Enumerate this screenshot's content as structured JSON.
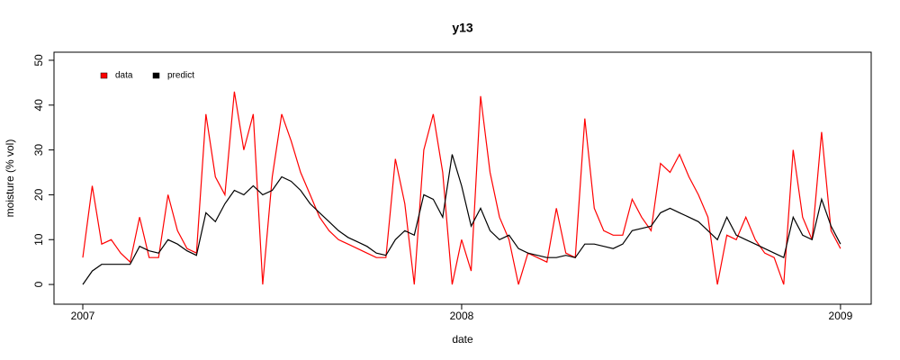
{
  "chart_data": {
    "type": "line",
    "title": "y13",
    "x_label": "date",
    "y_label": "moisture (% vol)",
    "x": [
      2007,
      2007.025,
      2007.05,
      2007.075,
      2007.1,
      2007.125,
      2007.15,
      2007.175,
      2007.2,
      2007.225,
      2007.25,
      2007.275,
      2007.3,
      2007.325,
      2007.35,
      2007.375,
      2007.4,
      2007.425,
      2007.45,
      2007.475,
      2007.5,
      2007.525,
      2007.55,
      2007.575,
      2007.6,
      2007.625,
      2007.65,
      2007.675,
      2007.7,
      2007.725,
      2007.75,
      2007.775,
      2007.8,
      2007.825,
      2007.85,
      2007.875,
      2007.9,
      2007.925,
      2007.95,
      2007.975,
      2008,
      2008.025,
      2008.05,
      2008.075,
      2008.1,
      2008.125,
      2008.15,
      2008.175,
      2008.2,
      2008.225,
      2008.25,
      2008.275,
      2008.3,
      2008.325,
      2008.35,
      2008.375,
      2008.4,
      2008.425,
      2008.45,
      2008.475,
      2008.5,
      2008.525,
      2008.55,
      2008.575,
      2008.6,
      2008.625,
      2008.65,
      2008.675,
      2008.7,
      2008.725,
      2008.75,
      2008.775,
      2008.8,
      2008.825,
      2008.85,
      2008.875,
      2008.9,
      2008.925,
      2008.95,
      2008.975,
      2009
    ],
    "series": [
      {
        "name": "data",
        "color": "#ff0000",
        "values": [
          6,
          22,
          9,
          10,
          7,
          5,
          15,
          6,
          6,
          20,
          12,
          8,
          7,
          38,
          24,
          20,
          43,
          30,
          38,
          0,
          24,
          38,
          32,
          25,
          20,
          15,
          12,
          10,
          9,
          8,
          7,
          6,
          6,
          28,
          18,
          0,
          30,
          38,
          25,
          0,
          10,
          3,
          42,
          25,
          15,
          10,
          0,
          7,
          6,
          5,
          17,
          7,
          6,
          37,
          17,
          12,
          11,
          11,
          19,
          15,
          12,
          27,
          25,
          29,
          24,
          20,
          15,
          0,
          11,
          10,
          15,
          10,
          7,
          6,
          0,
          30,
          15,
          10,
          34,
          12,
          8
        ]
      },
      {
        "name": "predict",
        "color": "#000000",
        "values": [
          0,
          3,
          4.5,
          4.5,
          4.5,
          4.5,
          8.5,
          7.5,
          7,
          10,
          9,
          7.5,
          6.5,
          16,
          14,
          18,
          21,
          20,
          22,
          20,
          21,
          24,
          23,
          21,
          18,
          16,
          14,
          12,
          10.5,
          9.5,
          8.5,
          7,
          6.5,
          10,
          12,
          11,
          20,
          19,
          15,
          29,
          22,
          13,
          17,
          12,
          10,
          11,
          8,
          7,
          6.5,
          6,
          6,
          6.5,
          6,
          9,
          9,
          8.5,
          8,
          9,
          12,
          12.5,
          13,
          16,
          17,
          16,
          15,
          14,
          12,
          10,
          15,
          11,
          10,
          9,
          8,
          7,
          6,
          15,
          11,
          10,
          19,
          13,
          9
        ]
      }
    ],
    "xlim": [
      2006.924,
      2009.081
    ],
    "xticks": [
      2007,
      2008,
      2009
    ],
    "ylim": [
      -4.4,
      51.8
    ],
    "yticks": [
      0,
      10,
      20,
      30,
      40,
      50
    ],
    "legend": "topleft",
    "grid": false
  }
}
